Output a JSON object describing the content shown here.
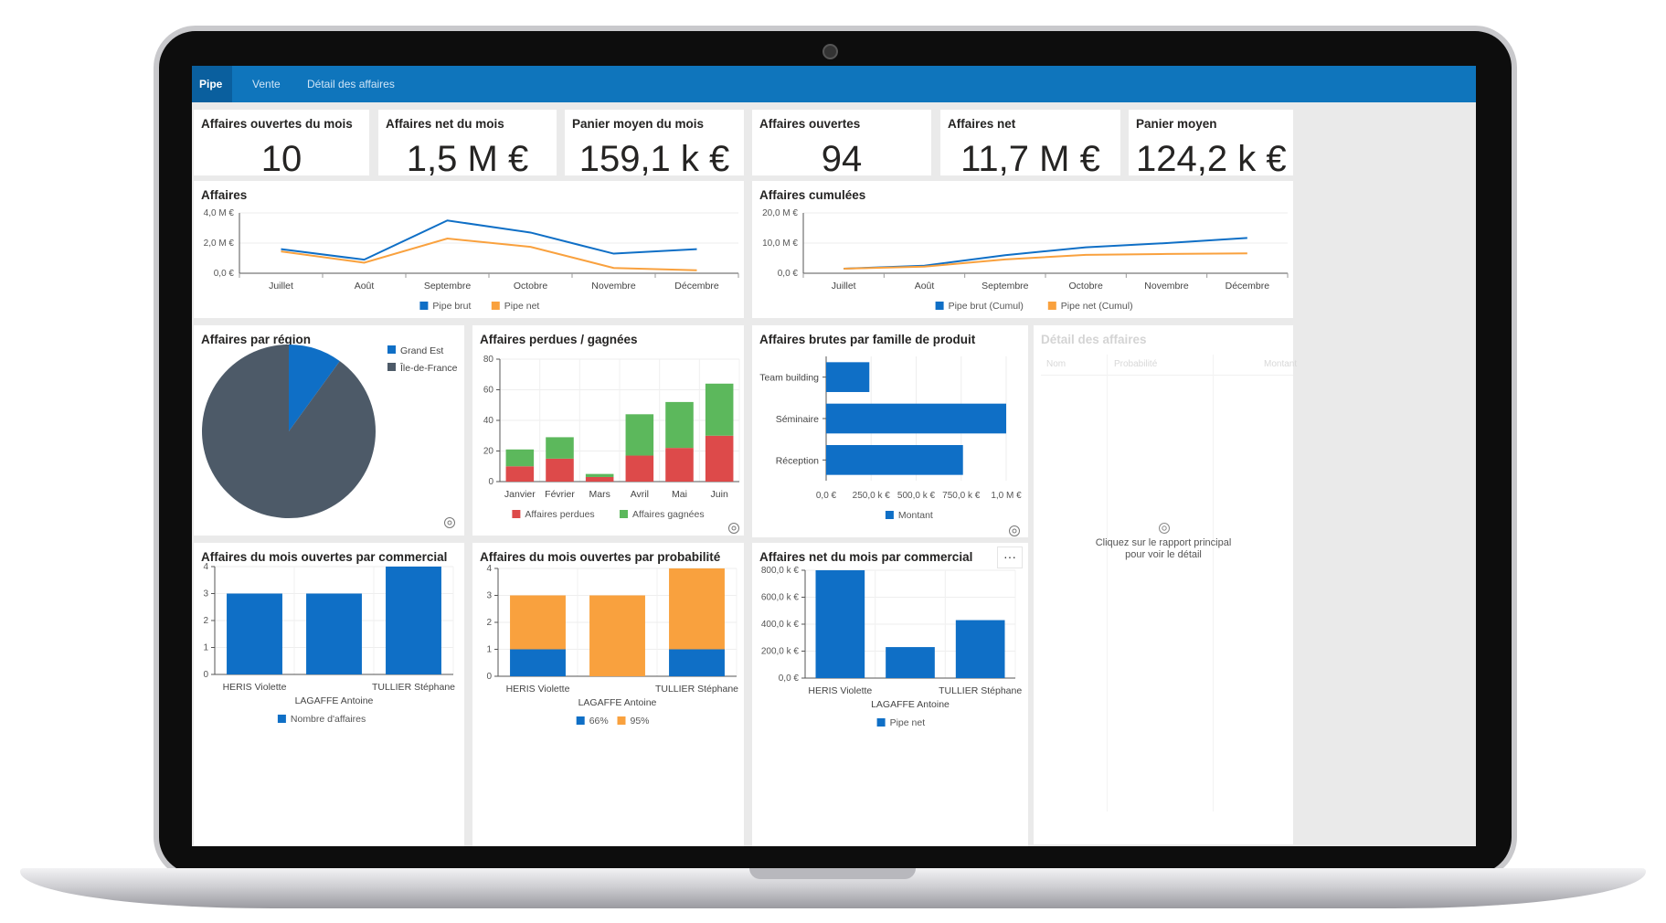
{
  "tabs": [
    {
      "label": "Pipe",
      "active": true
    },
    {
      "label": "Vente",
      "active": false
    },
    {
      "label": "Détail des affaires",
      "active": false
    }
  ],
  "kpis": [
    {
      "title": "Affaires ouvertes du mois",
      "value": "10"
    },
    {
      "title": "Affaires net du mois",
      "value": "1,5 M €"
    },
    {
      "title": "Panier moyen du mois",
      "value": "159,1 k €"
    },
    {
      "title": "Affaires ouvertes",
      "value": "94"
    },
    {
      "title": "Affaires net",
      "value": "11,7 M €"
    },
    {
      "title": "Panier moyen",
      "value": "124,2 k €"
    }
  ],
  "colors": {
    "blue": "#0f6fc6",
    "orange": "#f9a13e",
    "red": "#dd4a4a",
    "green": "#5cb85c",
    "slate": "#4d5a68",
    "header": "#0f75bc"
  },
  "chart_data": [
    {
      "id": "affaires",
      "type": "line",
      "title": "Affaires",
      "x": [
        "Juillet",
        "Août",
        "Septembre",
        "Octobre",
        "Novembre",
        "Décembre"
      ],
      "yticks": [
        "0,0 €",
        "2,0 M €",
        "4,0 M €"
      ],
      "ylim": [
        0,
        4
      ],
      "series": [
        {
          "name": "Pipe brut",
          "values": [
            1.6,
            0.9,
            3.5,
            2.7,
            1.3,
            1.6
          ],
          "color": "#0f6fc6"
        },
        {
          "name": "Pipe net",
          "values": [
            1.45,
            0.7,
            2.3,
            1.75,
            0.35,
            0.2
          ],
          "color": "#f9a13e"
        }
      ]
    },
    {
      "id": "cumulees",
      "type": "line",
      "title": "Affaires cumulées",
      "x": [
        "Juillet",
        "Août",
        "Septembre",
        "Octobre",
        "Novembre",
        "Décembre"
      ],
      "yticks": [
        "0,0 €",
        "10,0 M €",
        "20,0 M €"
      ],
      "ylim": [
        0,
        20
      ],
      "series": [
        {
          "name": "Pipe brut (Cumul)",
          "values": [
            1.5,
            2.5,
            6,
            8.6,
            10,
            11.7
          ],
          "color": "#0f6fc6"
        },
        {
          "name": "Pipe net (Cumul)",
          "values": [
            1.5,
            2.2,
            4.6,
            6.1,
            6.4,
            6.6
          ],
          "color": "#f9a13e"
        }
      ]
    },
    {
      "id": "region",
      "type": "pie",
      "title": "Affaires par région",
      "labels": [
        "Grand Est",
        "Île-de-France"
      ],
      "values": [
        10,
        90
      ],
      "colors": [
        "#0f6fc6",
        "#4d5a68"
      ]
    },
    {
      "id": "perdues",
      "type": "bar",
      "title": "Affaires perdues / gagnées",
      "categories": [
        "Janvier",
        "Février",
        "Mars",
        "Avril",
        "Mai",
        "Juin"
      ],
      "yticks": [
        "0",
        "20",
        "40",
        "60",
        "80"
      ],
      "ylim": [
        0,
        80
      ],
      "series": [
        {
          "name": "Affaires perdues",
          "values": [
            10,
            15,
            3,
            17,
            22,
            30
          ],
          "color": "#dd4a4a"
        },
        {
          "name": "Affaires gagnées",
          "values": [
            11,
            14,
            2,
            27,
            30,
            34
          ],
          "color": "#5cb85c"
        }
      ]
    },
    {
      "id": "famille",
      "type": "bar",
      "title": "Affaires brutes par famille de produit",
      "categories": [
        "Team building",
        "Séminaire",
        "Réception"
      ],
      "xticks": [
        "0,0 €",
        "250,0 k €",
        "500,0 k €",
        "750,0 k €",
        "1,0 M €"
      ],
      "xlim": [
        0,
        1000
      ],
      "series": [
        {
          "name": "Montant",
          "values": [
            240,
            1000,
            760
          ],
          "color": "#0f6fc6"
        }
      ]
    },
    {
      "id": "commercial",
      "type": "bar",
      "title": "Affaires du mois ouvertes par commercial",
      "categories": [
        "HERIS Violette",
        "LAGAFFE Antoine",
        "TULLIER Stéphane"
      ],
      "yticks": [
        "0",
        "1",
        "2",
        "3",
        "4"
      ],
      "ylim": [
        0,
        4
      ],
      "series": [
        {
          "name": "Nombre d'affaires",
          "values": [
            3,
            3,
            4
          ],
          "color": "#0f6fc6"
        }
      ]
    },
    {
      "id": "probabilite",
      "type": "bar",
      "title": "Affaires du mois ouvertes par probabilité",
      "categories": [
        "HERIS Violette",
        "LAGAFFE Antoine",
        "TULLIER Stéphane"
      ],
      "yticks": [
        "0",
        "1",
        "2",
        "3",
        "4"
      ],
      "ylim": [
        0,
        4
      ],
      "series": [
        {
          "name": "66%",
          "values": [
            1,
            0,
            1
          ],
          "color": "#0f6fc6"
        },
        {
          "name": "95%",
          "values": [
            2,
            3,
            3
          ],
          "color": "#f9a13e"
        }
      ]
    },
    {
      "id": "net-commercial",
      "type": "bar",
      "title": "Affaires net du mois par commercial",
      "categories": [
        "HERIS Violette",
        "LAGAFFE Antoine",
        "TULLIER Stéphane"
      ],
      "yticks": [
        "0,0 €",
        "200,0 k €",
        "400,0 k €",
        "600,0 k €",
        "800,0 k €"
      ],
      "ylim": [
        0,
        800
      ],
      "series": [
        {
          "name": "Pipe net",
          "values": [
            800,
            230,
            430
          ],
          "color": "#0f6fc6"
        }
      ]
    }
  ],
  "detail": {
    "title": "Détail des affaires",
    "columns": [
      "Nom",
      "Probabilité",
      "Montant"
    ],
    "empty_message_line1": "Cliquez sur le rapport principal",
    "empty_message_line2": "pour voir le détail"
  },
  "more_menu": "···"
}
